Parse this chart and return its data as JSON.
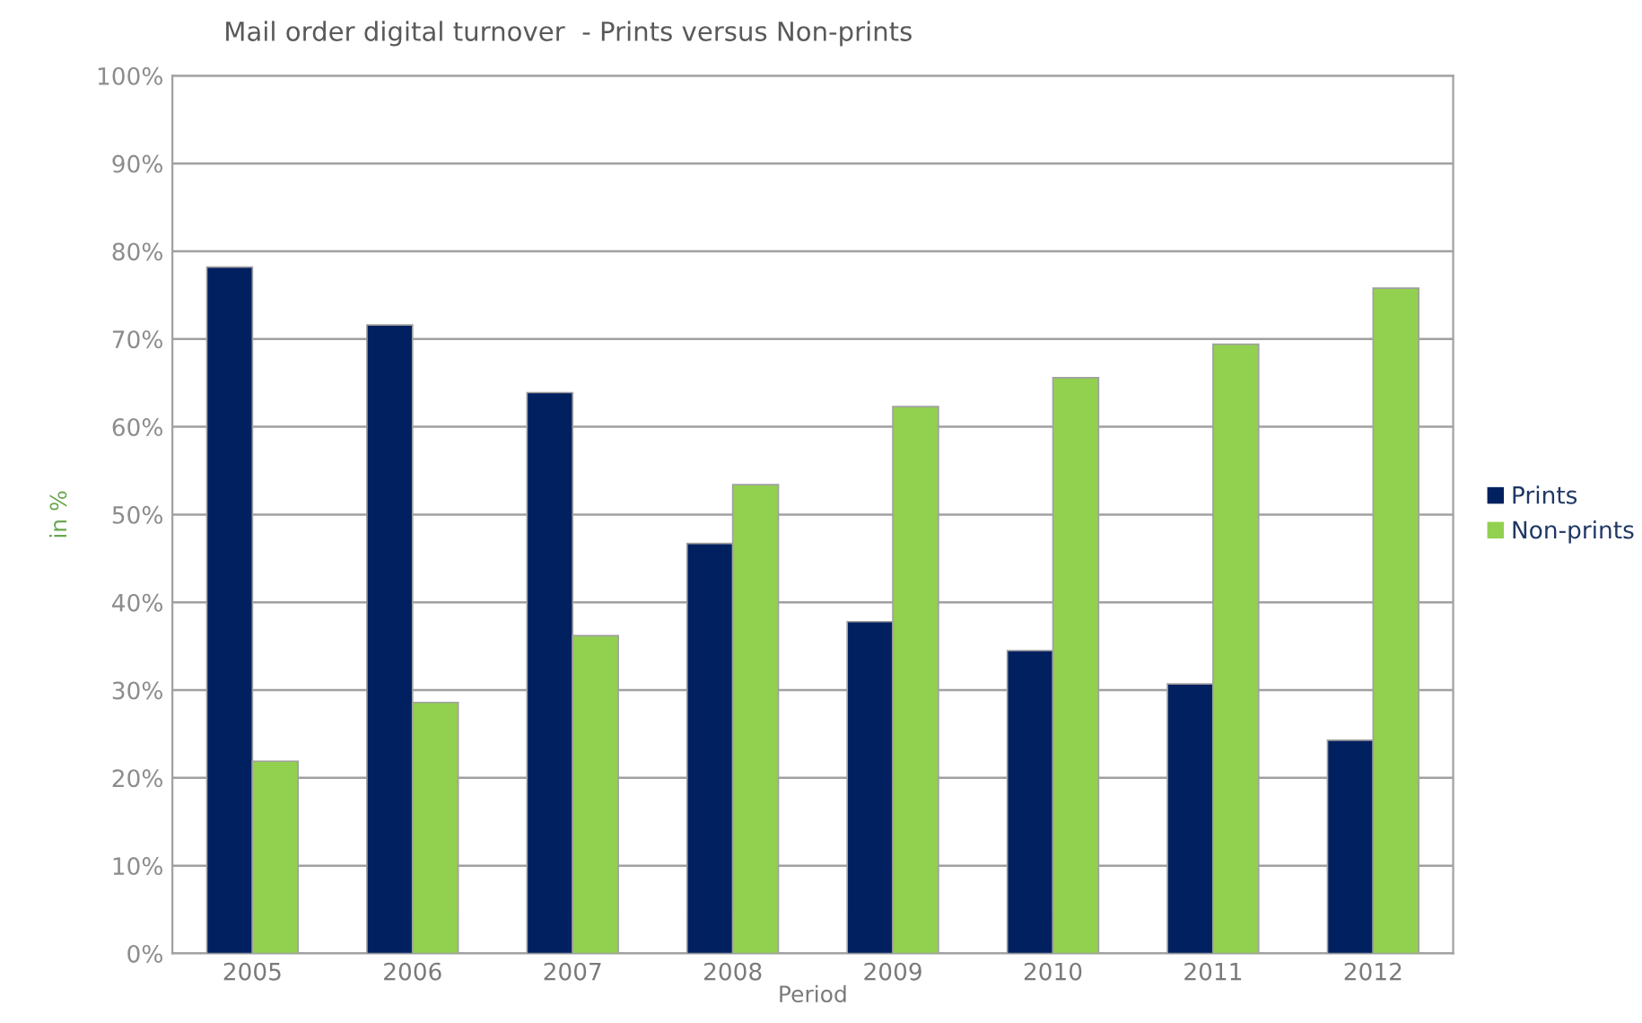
{
  "chart_data": {
    "type": "bar",
    "title": "Mail order digital turnover  - Prints versus Non-prints",
    "xlabel": "Period",
    "ylabel": "in %",
    "categories": [
      "2005",
      "2006",
      "2007",
      "2008",
      "2009",
      "2010",
      "2011",
      "2012"
    ],
    "series": [
      {
        "name": "Prints",
        "color": "#002060",
        "values": [
          78.2,
          71.6,
          63.9,
          46.7,
          37.8,
          34.5,
          30.7,
          24.3
        ]
      },
      {
        "name": "Non-prints",
        "color": "#92d050",
        "values": [
          21.9,
          28.6,
          36.2,
          53.4,
          62.3,
          65.6,
          69.4,
          75.8
        ]
      }
    ],
    "ylim": [
      0,
      100
    ],
    "yticks": [
      {
        "value": 0,
        "label": "0%"
      },
      {
        "value": 10,
        "label": "10%"
      },
      {
        "value": 20,
        "label": "20%"
      },
      {
        "value": 30,
        "label": "30%"
      },
      {
        "value": 40,
        "label": "40%"
      },
      {
        "value": 50,
        "label": "50%"
      },
      {
        "value": 60,
        "label": "60%"
      },
      {
        "value": 70,
        "label": "70%"
      },
      {
        "value": 80,
        "label": "80%"
      },
      {
        "value": 90,
        "label": "90%"
      },
      {
        "value": 100,
        "label": "100%"
      }
    ],
    "grid": "y",
    "legend": "right"
  }
}
